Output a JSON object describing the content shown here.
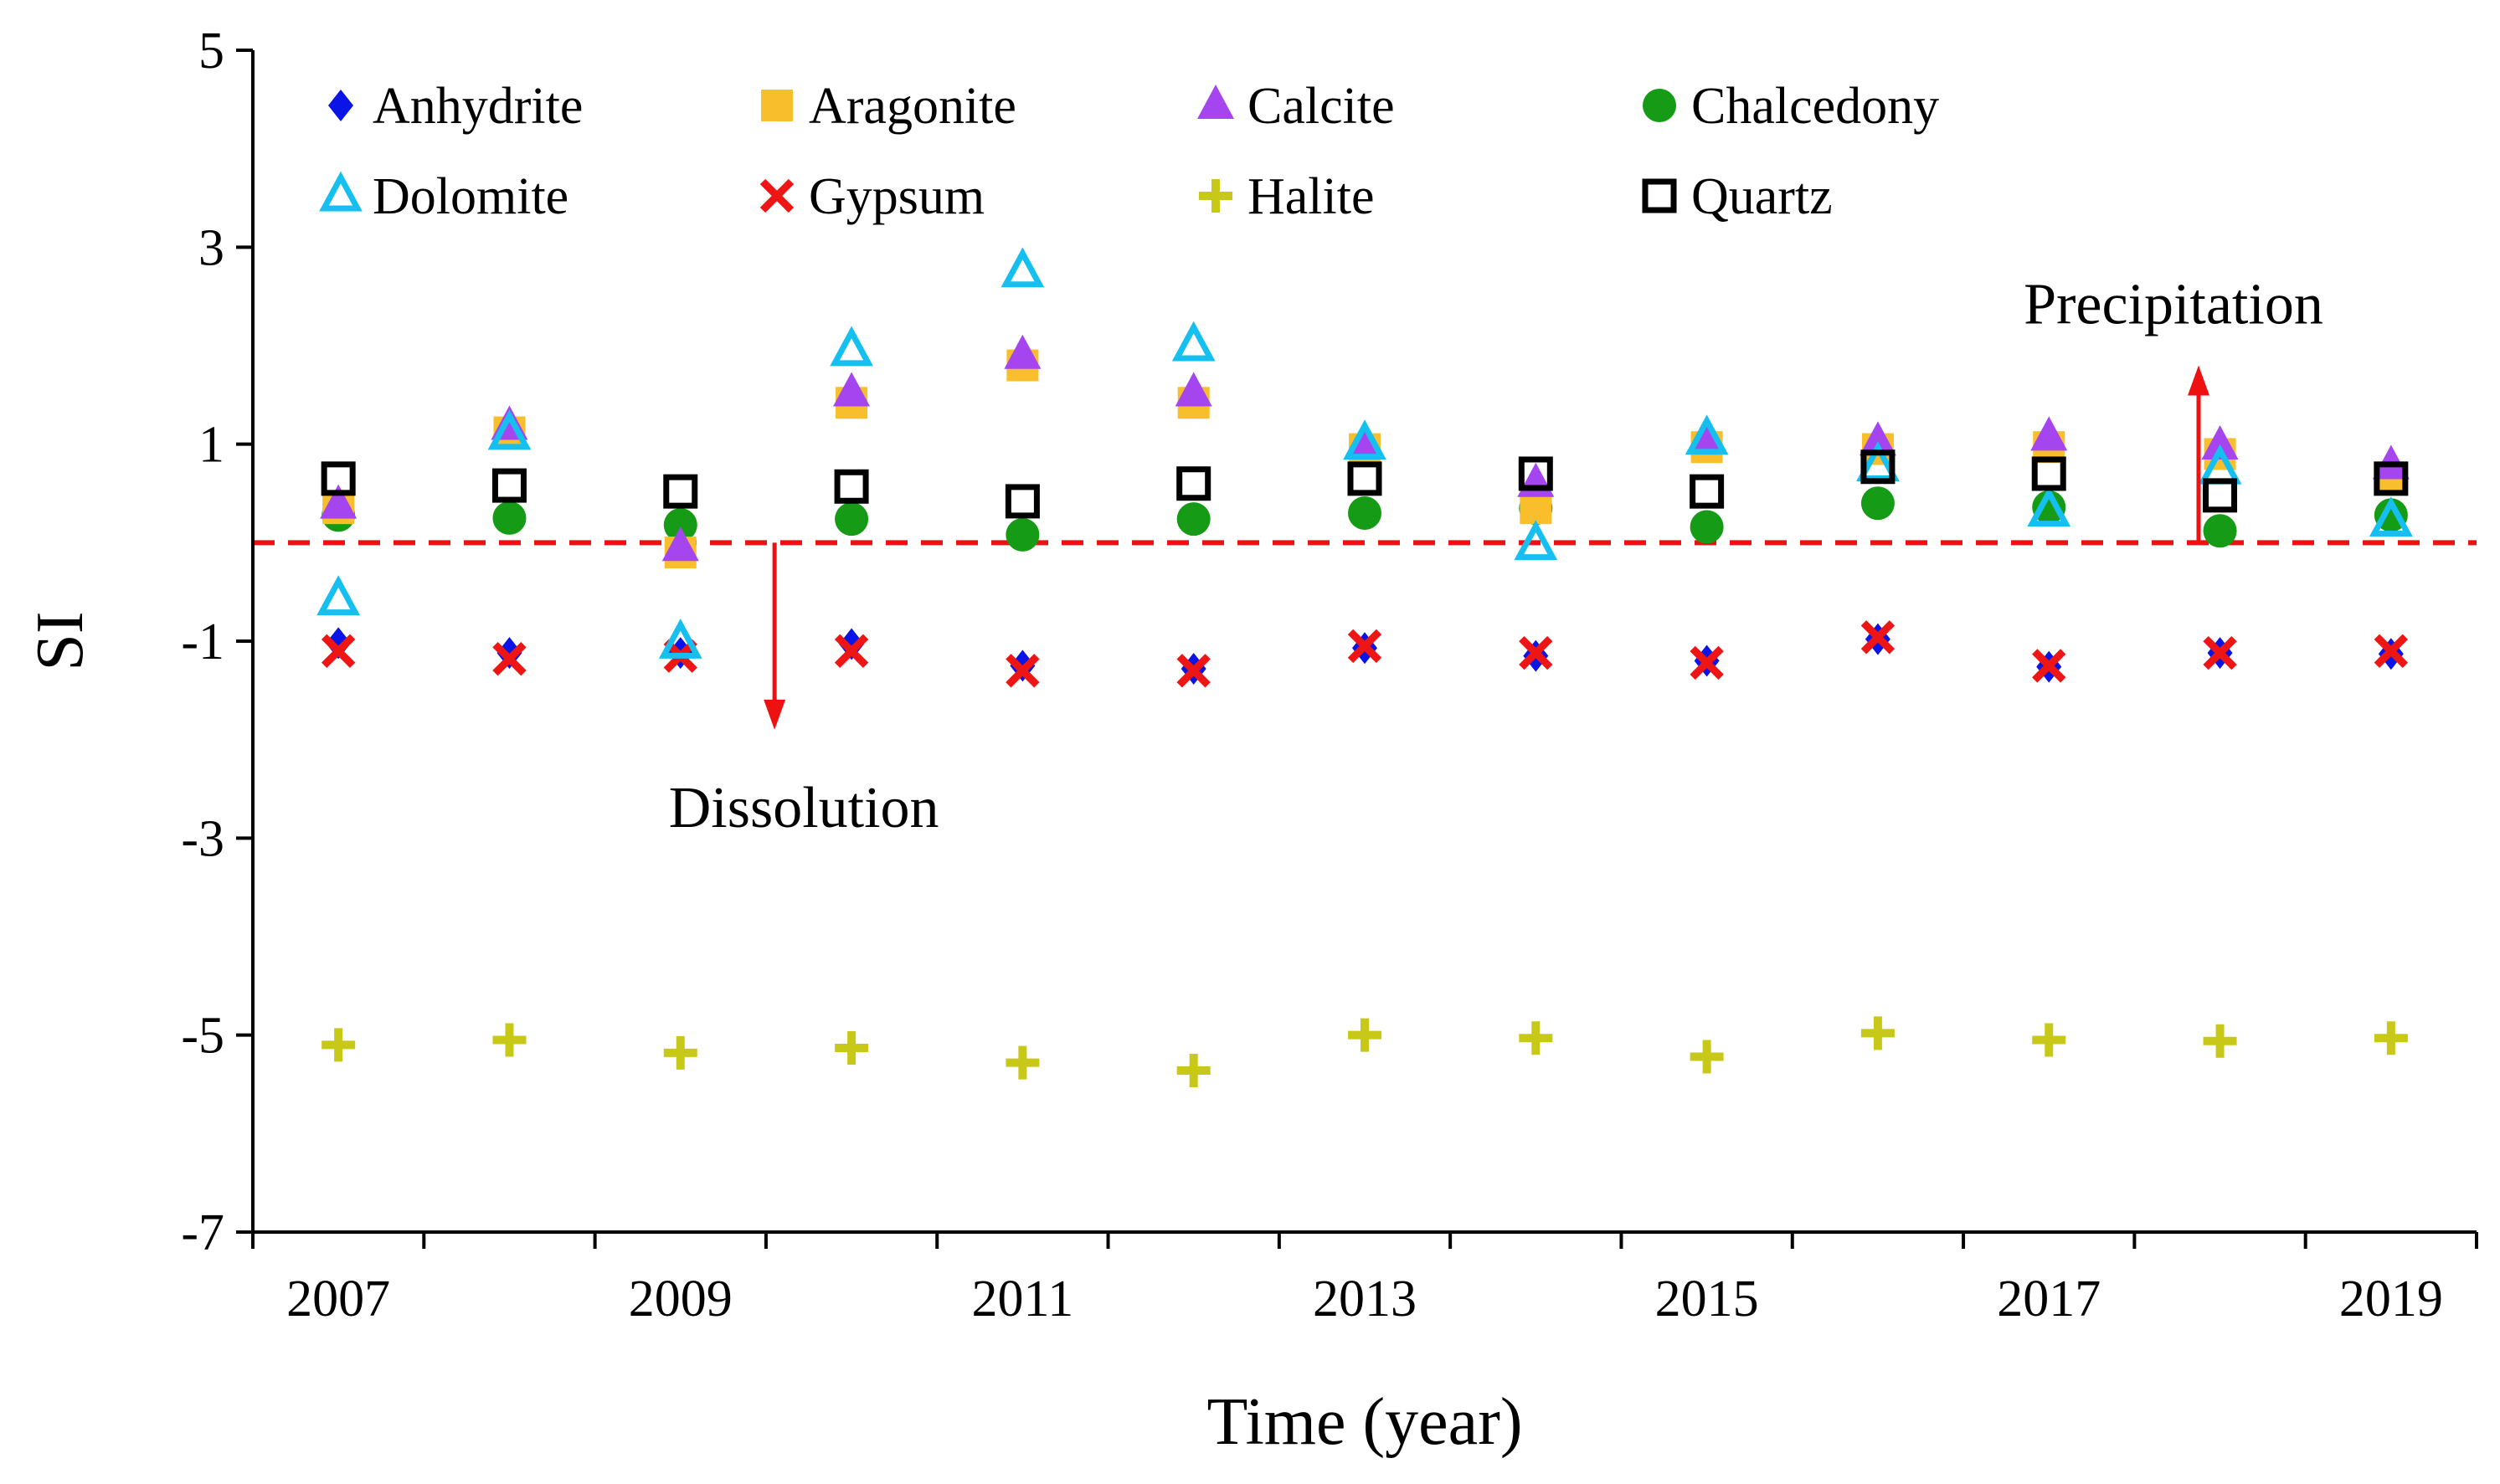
{
  "chart_data": {
    "type": "scatter",
    "title": "",
    "xlabel": "Time (year)",
    "ylabel": "SI",
    "ylim": [
      -7,
      5
    ],
    "y_ticks": [
      "5",
      "3",
      "1",
      "-1",
      "-3",
      "-5",
      "-7"
    ],
    "x_ticks": [
      "2007",
      "2009",
      "2011",
      "2013",
      "2015",
      "2017",
      "2019"
    ],
    "x_index_range": [
      0,
      26
    ],
    "x_tick_index": [
      1,
      5,
      9,
      13,
      17,
      21,
      25
    ],
    "grid": false,
    "legend_position": "top",
    "threshold_line": {
      "y": 0,
      "color": "#ee1111",
      "style": "dashed"
    },
    "annotations": [
      {
        "text": "Precipitation",
        "direction": "up",
        "x_index": 22.75,
        "from_y": 0,
        "to_y": 1.8
      },
      {
        "text": "Dissolution",
        "direction": "down",
        "x_index": 6.1,
        "from_y": 0,
        "to_y": -1.9
      }
    ],
    "x_point_index": [
      1,
      3,
      5,
      7,
      9,
      11,
      13,
      15,
      17,
      19,
      21,
      23,
      25
    ],
    "series": [
      {
        "name": "Anhydrite",
        "marker": "diamond",
        "color": "#0a14e6",
        "values": [
          -1.02,
          -1.12,
          -1.12,
          -1.03,
          -1.25,
          -1.28,
          -1.07,
          -1.15,
          -1.2,
          -0.98,
          -1.26,
          -1.12,
          -1.13
        ]
      },
      {
        "name": "Aragonite",
        "marker": "square",
        "color": "#f8be2c",
        "values": [
          0.35,
          1.12,
          -0.1,
          1.42,
          1.8,
          1.42,
          0.95,
          0.35,
          0.97,
          0.95,
          0.97,
          0.9,
          0.65
        ]
      },
      {
        "name": "Calcite",
        "marker": "triangle",
        "color": "#a545f0",
        "values": [
          0.38,
          1.18,
          -0.05,
          1.52,
          1.9,
          1.52,
          1.0,
          0.6,
          1.05,
          1.02,
          1.07,
          0.98,
          0.78
        ]
      },
      {
        "name": "Chalcedony",
        "marker": "circle",
        "color": "#159b15",
        "values": [
          0.28,
          0.25,
          0.18,
          0.24,
          0.08,
          0.24,
          0.3,
          0.35,
          0.16,
          0.4,
          0.36,
          0.12,
          0.28
        ]
      },
      {
        "name": "Dolomite",
        "marker": "triangle-open",
        "color": "#15c0f0",
        "values": [
          -0.58,
          1.1,
          -1.02,
          1.95,
          2.75,
          2.0,
          1.0,
          -0.02,
          1.05,
          0.78,
          0.32,
          0.75,
          0.22
        ]
      },
      {
        "name": "Gypsum",
        "marker": "x",
        "color": "#ee1515",
        "values": [
          -1.1,
          -1.18,
          -1.15,
          -1.1,
          -1.3,
          -1.3,
          -1.05,
          -1.12,
          -1.22,
          -0.96,
          -1.25,
          -1.12,
          -1.1
        ]
      },
      {
        "name": "Halite",
        "marker": "plus",
        "color": "#c8c818",
        "values": [
          -5.1,
          -5.05,
          -5.18,
          -5.13,
          -5.28,
          -5.36,
          -5.0,
          -5.03,
          -5.22,
          -4.98,
          -5.05,
          -5.06,
          -5.03
        ]
      },
      {
        "name": "Quartz",
        "marker": "square-open",
        "color": "#000000",
        "values": [
          0.65,
          0.58,
          0.52,
          0.57,
          0.42,
          0.6,
          0.65,
          0.7,
          0.52,
          0.77,
          0.7,
          0.48,
          0.65
        ]
      }
    ]
  }
}
